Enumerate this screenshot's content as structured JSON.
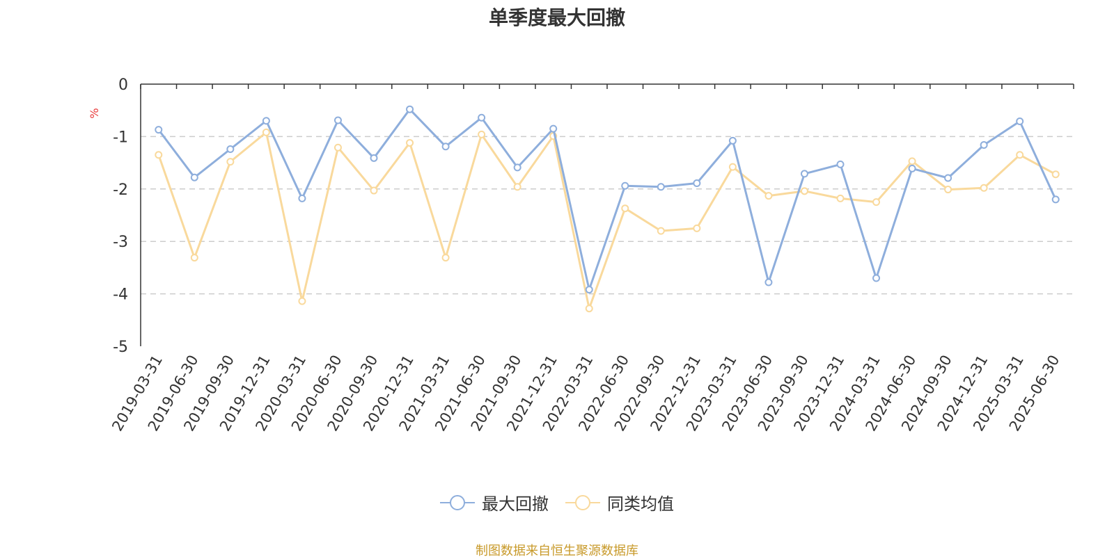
{
  "chart_data": {
    "type": "line",
    "title": "单季度最大回撤",
    "ylabel": "%",
    "ylim": [
      -5,
      0
    ],
    "yticks": [
      0,
      -1,
      -2,
      -3,
      -4,
      -5
    ],
    "grid": true,
    "legend_position": "bottom",
    "categories": [
      "2019-03-31",
      "2019-06-30",
      "2019-09-30",
      "2019-12-31",
      "2020-03-31",
      "2020-06-30",
      "2020-09-30",
      "2020-12-31",
      "2021-03-31",
      "2021-06-30",
      "2021-09-30",
      "2021-12-31",
      "2022-03-31",
      "2022-06-30",
      "2022-09-30",
      "2022-12-31",
      "2023-03-31",
      "2023-06-30",
      "2023-09-30",
      "2023-12-31",
      "2024-03-31",
      "2024-06-30",
      "2024-09-30",
      "2024-12-31",
      "2025-03-31",
      "2025-06-30"
    ],
    "series": [
      {
        "name": "最大回撤",
        "color": "#8eaedc",
        "values": [
          -0.87,
          -1.78,
          -1.24,
          -0.7,
          -2.18,
          -0.69,
          -1.41,
          -0.48,
          -1.19,
          -0.64,
          -1.59,
          -0.85,
          -3.92,
          -1.94,
          -1.96,
          -1.89,
          -1.08,
          -3.78,
          -1.71,
          -1.53,
          -3.7,
          -1.61,
          -1.79,
          -1.16,
          -0.71,
          -2.2
        ]
      },
      {
        "name": "同类均值",
        "color": "#f9d99c",
        "values": [
          -1.35,
          -3.31,
          -1.48,
          -0.92,
          -4.14,
          -1.21,
          -2.03,
          -1.12,
          -3.31,
          -0.96,
          -1.96,
          -0.99,
          -4.28,
          -2.37,
          -2.8,
          -2.75,
          -1.58,
          -2.13,
          -2.04,
          -2.18,
          -2.25,
          -1.47,
          -2.01,
          -1.98,
          -1.35,
          -1.72
        ]
      }
    ]
  },
  "source_text": "制图数据来自恒生聚源数据库",
  "source_color": "#c89a2a",
  "unit_color": "#e83b3b"
}
